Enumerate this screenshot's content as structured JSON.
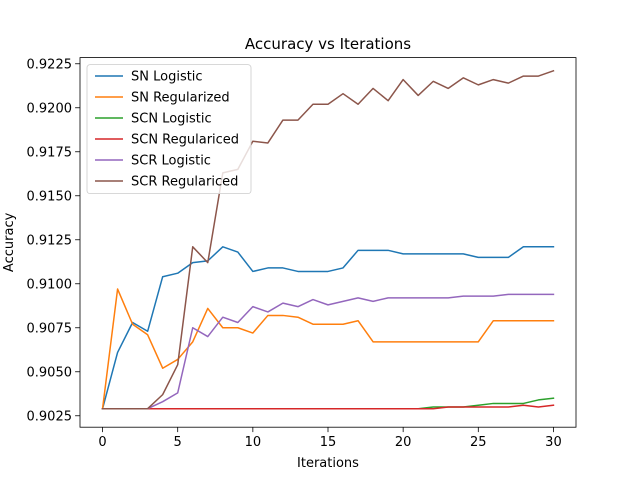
{
  "chart_data": {
    "type": "line",
    "title": "Accuracy vs Iterations",
    "xlabel": "Iterations",
    "ylabel": "Accuracy",
    "xlim": [
      -1.5,
      31.5
    ],
    "ylim": [
      0.90185,
      0.92285
    ],
    "xticks": [
      0,
      5,
      10,
      15,
      20,
      25,
      30
    ],
    "yticks": [
      0.9025,
      0.905,
      0.9075,
      0.91,
      0.9125,
      0.915,
      0.9175,
      0.92,
      0.9225
    ],
    "ytick_labels": [
      "0.9025",
      "0.9050",
      "0.9075",
      "0.9100",
      "0.9125",
      "0.9150",
      "0.9175",
      "0.9200",
      "0.9225"
    ],
    "grid": false,
    "legend_position": "top-left",
    "x": [
      0,
      1,
      2,
      3,
      4,
      5,
      6,
      7,
      8,
      9,
      10,
      11,
      12,
      13,
      14,
      15,
      16,
      17,
      18,
      19,
      20,
      21,
      22,
      23,
      24,
      25,
      26,
      27,
      28,
      29,
      30
    ],
    "series": [
      {
        "name": "SN Logistic",
        "color": "#1f77b4",
        "values": [
          0.9029,
          0.9061,
          0.9078,
          0.9073,
          0.9104,
          0.9106,
          0.9112,
          0.9113,
          0.9121,
          0.9118,
          0.9107,
          0.9109,
          0.9109,
          0.9107,
          0.9107,
          0.9107,
          0.9109,
          0.9119,
          0.9119,
          0.9119,
          0.9117,
          0.9117,
          0.9117,
          0.9117,
          0.9117,
          0.9115,
          0.9115,
          0.9115,
          0.9121,
          0.9121,
          0.9121
        ]
      },
      {
        "name": "SN Regularized",
        "color": "#ff7f0e",
        "values": [
          0.9029,
          0.9097,
          0.9077,
          0.9071,
          0.9052,
          0.9057,
          0.9067,
          0.9086,
          0.9075,
          0.9075,
          0.9072,
          0.9082,
          0.9082,
          0.9081,
          0.9077,
          0.9077,
          0.9077,
          0.9079,
          0.9067,
          0.9067,
          0.9067,
          0.9067,
          0.9067,
          0.9067,
          0.9067,
          0.9067,
          0.9079,
          0.9079,
          0.9079,
          0.9079,
          0.9079
        ]
      },
      {
        "name": "SCN Logistic",
        "color": "#2ca02c",
        "values": [
          0.9029,
          0.9029,
          0.9029,
          0.9029,
          0.9029,
          0.9029,
          0.9029,
          0.9029,
          0.9029,
          0.9029,
          0.9029,
          0.9029,
          0.9029,
          0.9029,
          0.9029,
          0.9029,
          0.9029,
          0.9029,
          0.9029,
          0.9029,
          0.9029,
          0.9029,
          0.903,
          0.903,
          0.903,
          0.9031,
          0.9032,
          0.9032,
          0.9032,
          0.9034,
          0.9035
        ]
      },
      {
        "name": "SCN Regulariced",
        "color": "#d62728",
        "values": [
          0.9029,
          0.9029,
          0.9029,
          0.9029,
          0.9029,
          0.9029,
          0.9029,
          0.9029,
          0.9029,
          0.9029,
          0.9029,
          0.9029,
          0.9029,
          0.9029,
          0.9029,
          0.9029,
          0.9029,
          0.9029,
          0.9029,
          0.9029,
          0.9029,
          0.9029,
          0.9029,
          0.903,
          0.903,
          0.903,
          0.903,
          0.903,
          0.9031,
          0.903,
          0.9031
        ]
      },
      {
        "name": "SCR Logistic",
        "color": "#9467bd",
        "values": [
          0.9029,
          0.9029,
          0.9029,
          0.9029,
          0.9033,
          0.9038,
          0.9075,
          0.907,
          0.9081,
          0.9078,
          0.9087,
          0.9084,
          0.9089,
          0.9087,
          0.9091,
          0.9088,
          0.909,
          0.9092,
          0.909,
          0.9092,
          0.9092,
          0.9092,
          0.9092,
          0.9092,
          0.9093,
          0.9093,
          0.9093,
          0.9094,
          0.9094,
          0.9094,
          0.9094
        ]
      },
      {
        "name": "SCR Regulariced",
        "color": "#8c564b",
        "values": [
          0.9029,
          0.9029,
          0.9029,
          0.9029,
          0.9037,
          0.9054,
          0.9121,
          0.9112,
          0.9163,
          0.9165,
          0.9181,
          0.918,
          0.9193,
          0.9193,
          0.9202,
          0.9202,
          0.9208,
          0.9202,
          0.9211,
          0.9204,
          0.9216,
          0.9207,
          0.9215,
          0.9211,
          0.9217,
          0.9213,
          0.9216,
          0.9214,
          0.9218,
          0.9218,
          0.9221
        ]
      }
    ]
  }
}
